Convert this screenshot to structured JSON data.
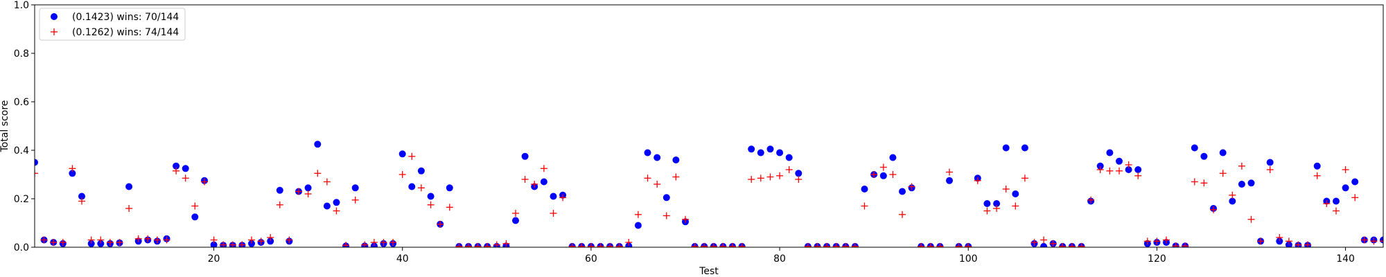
{
  "chart_data": {
    "type": "scatter",
    "title": "",
    "xlabel": "Test",
    "ylabel": "Total score",
    "xlim": [
      1,
      144
    ],
    "ylim": [
      0,
      1.0
    ],
    "xticks": [
      20,
      40,
      60,
      80,
      100,
      120,
      140
    ],
    "yticks": [
      0.0,
      0.2,
      0.4,
      0.6,
      0.8,
      1.0
    ],
    "grid": false,
    "legend_position": "top-left",
    "series": [
      {
        "name": "(0.1423) wins: 70/144",
        "marker": "circle",
        "color": "#0000ff",
        "x": [
          1,
          2,
          3,
          4,
          5,
          6,
          7,
          8,
          9,
          10,
          11,
          12,
          13,
          14,
          15,
          16,
          17,
          18,
          19,
          20,
          21,
          22,
          23,
          24,
          25,
          26,
          27,
          28,
          29,
          30,
          31,
          32,
          33,
          34,
          35,
          36,
          37,
          38,
          39,
          40,
          41,
          42,
          43,
          44,
          45,
          46,
          47,
          48,
          49,
          50,
          51,
          52,
          53,
          54,
          55,
          56,
          57,
          58,
          59,
          60,
          61,
          62,
          63,
          64,
          65,
          66,
          67,
          68,
          69,
          70,
          71,
          72,
          73,
          74,
          75,
          76,
          77,
          78,
          79,
          80,
          81,
          82,
          83,
          84,
          85,
          86,
          87,
          88,
          89,
          90,
          91,
          92,
          93,
          94,
          95,
          96,
          97,
          98,
          99,
          100,
          101,
          102,
          103,
          104,
          105,
          106,
          107,
          108,
          109,
          110,
          111,
          112,
          113,
          114,
          115,
          116,
          117,
          118,
          119,
          120,
          121,
          122,
          123,
          124,
          125,
          126,
          127,
          128,
          129,
          130,
          131,
          132,
          133,
          134,
          135,
          136,
          137,
          138,
          139,
          140,
          141,
          142,
          143,
          144
        ],
        "y": [
          0.35,
          0.03,
          0.02,
          0.015,
          0.305,
          0.21,
          0.015,
          0.015,
          0.015,
          0.018,
          0.25,
          0.025,
          0.03,
          0.025,
          0.035,
          0.335,
          0.325,
          0.125,
          0.275,
          0.01,
          0.008,
          0.008,
          0.008,
          0.015,
          0.02,
          0.025,
          0.235,
          0.025,
          0.23,
          0.245,
          0.425,
          0.17,
          0.185,
          0.005,
          0.245,
          0.005,
          0.005,
          0.015,
          0.015,
          0.385,
          0.25,
          0.315,
          0.21,
          0.095,
          0.245,
          0.003,
          0.003,
          0.003,
          0.003,
          0.003,
          0.005,
          0.11,
          0.375,
          0.25,
          0.27,
          0.21,
          0.215,
          0.003,
          0.003,
          0.003,
          0.003,
          0.003,
          0.003,
          0.005,
          0.09,
          0.39,
          0.37,
          0.205,
          0.36,
          0.105,
          0.003,
          0.003,
          0.003,
          0.003,
          0.003,
          0.003,
          0.405,
          0.39,
          0.405,
          0.39,
          0.37,
          0.305,
          0.003,
          0.003,
          0.003,
          0.003,
          0.003,
          0.003,
          0.24,
          0.3,
          0.295,
          0.37,
          0.23,
          0.245,
          0.003,
          0.003,
          0.003,
          0.275,
          0.003,
          0.003,
          0.285,
          0.18,
          0.18,
          0.41,
          0.22,
          0.41,
          0.015,
          0.003,
          0.015,
          0.003,
          0.003,
          0.003,
          0.19,
          0.335,
          0.39,
          0.355,
          0.32,
          0.32,
          0.015,
          0.02,
          0.02,
          0.005,
          0.005,
          0.41,
          0.375,
          0.16,
          0.39,
          0.19,
          0.26,
          0.265,
          0.025,
          0.35,
          0.025,
          0.01,
          0.008,
          0.008,
          0.335,
          0.19,
          0.19,
          0.245,
          0.27,
          0.03,
          0.03,
          0.03
        ]
      },
      {
        "name": "(0.1262) wins: 74/144",
        "marker": "plus",
        "color": "#ff0000",
        "x": [
          1,
          2,
          3,
          4,
          5,
          6,
          7,
          8,
          9,
          10,
          11,
          12,
          13,
          14,
          15,
          16,
          17,
          18,
          19,
          20,
          21,
          22,
          23,
          24,
          25,
          26,
          27,
          28,
          29,
          30,
          31,
          32,
          33,
          34,
          35,
          36,
          37,
          38,
          39,
          40,
          41,
          42,
          43,
          44,
          45,
          46,
          47,
          48,
          49,
          50,
          51,
          52,
          53,
          54,
          55,
          56,
          57,
          58,
          59,
          60,
          61,
          62,
          63,
          64,
          65,
          66,
          67,
          68,
          69,
          70,
          71,
          72,
          73,
          74,
          75,
          76,
          77,
          78,
          79,
          80,
          81,
          82,
          83,
          84,
          85,
          86,
          87,
          88,
          89,
          90,
          91,
          92,
          93,
          94,
          95,
          96,
          97,
          98,
          99,
          100,
          101,
          102,
          103,
          104,
          105,
          106,
          107,
          108,
          109,
          110,
          111,
          112,
          113,
          114,
          115,
          116,
          117,
          118,
          119,
          120,
          121,
          122,
          123,
          124,
          125,
          126,
          127,
          128,
          129,
          130,
          131,
          132,
          133,
          134,
          135,
          136,
          137,
          138,
          139,
          140,
          141,
          142,
          143,
          144
        ],
        "y": [
          0.305,
          0.03,
          0.02,
          0.02,
          0.325,
          0.19,
          0.03,
          0.03,
          0.02,
          0.02,
          0.16,
          0.035,
          0.035,
          0.03,
          0.03,
          0.315,
          0.285,
          0.17,
          0.27,
          0.03,
          0.01,
          0.01,
          0.01,
          0.03,
          0.025,
          0.04,
          0.175,
          0.03,
          0.23,
          0.22,
          0.305,
          0.27,
          0.15,
          0.008,
          0.195,
          0.01,
          0.02,
          0.02,
          0.02,
          0.3,
          0.375,
          0.245,
          0.175,
          0.095,
          0.165,
          0.003,
          0.003,
          0.003,
          0.003,
          0.01,
          0.015,
          0.14,
          0.28,
          0.26,
          0.325,
          0.14,
          0.205,
          0.003,
          0.003,
          0.003,
          0.003,
          0.003,
          0.003,
          0.02,
          0.135,
          0.285,
          0.26,
          0.13,
          0.29,
          0.115,
          0.003,
          0.003,
          0.003,
          0.003,
          0.003,
          0.003,
          0.28,
          0.285,
          0.29,
          0.295,
          0.32,
          0.28,
          0.003,
          0.003,
          0.003,
          0.003,
          0.003,
          0.003,
          0.17,
          0.3,
          0.33,
          0.3,
          0.135,
          0.25,
          0.003,
          0.003,
          0.003,
          0.31,
          0.003,
          0.003,
          0.275,
          0.15,
          0.16,
          0.24,
          0.17,
          0.285,
          0.02,
          0.03,
          0.015,
          0.003,
          0.003,
          0.003,
          0.195,
          0.32,
          0.315,
          0.315,
          0.34,
          0.295,
          0.025,
          0.025,
          0.03,
          0.005,
          0.005,
          0.27,
          0.265,
          0.155,
          0.305,
          0.215,
          0.335,
          0.115,
          0.025,
          0.32,
          0.04,
          0.025,
          0.01,
          0.01,
          0.295,
          0.18,
          0.15,
          0.32,
          0.205,
          0.03,
          0.025,
          0.025
        ]
      }
    ]
  }
}
